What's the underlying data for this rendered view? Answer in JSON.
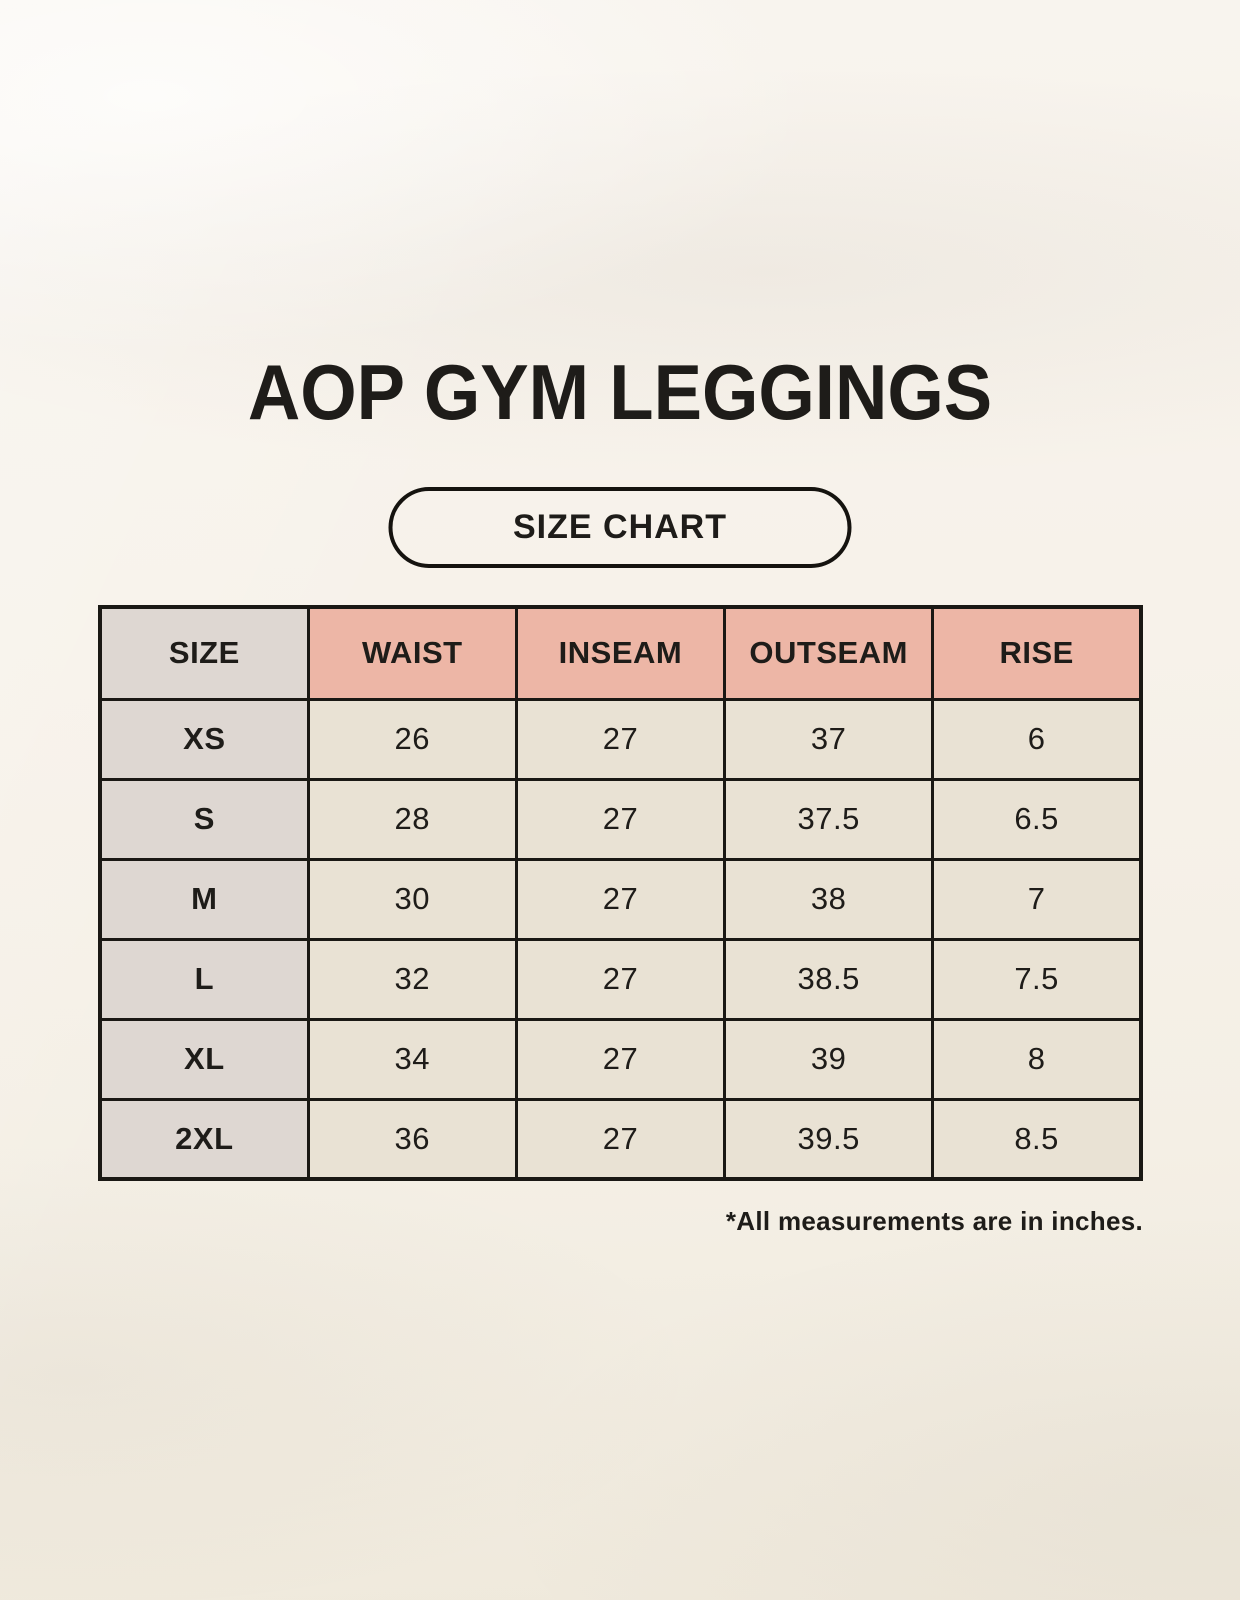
{
  "title": "AOP GYM LEGGINGS",
  "badge_label": "SIZE CHART",
  "footnote": "*All measurements are in inches.",
  "colors": {
    "background": "#f7f2ea",
    "header_accent": "#edb6a6",
    "size_column": "#ded7d2",
    "data_cell": "#e9e2d4",
    "border": "#1a1814",
    "text": "#1e1c19"
  },
  "chart_data": {
    "type": "table",
    "title": "AOP GYM LEGGINGS",
    "subtitle": "SIZE CHART",
    "units": "inches",
    "note": "*All measurements are in inches.",
    "columns": [
      "SIZE",
      "WAIST",
      "INSEAM",
      "OUTSEAM",
      "RISE"
    ],
    "rows": [
      [
        "XS",
        "26",
        "27",
        "37",
        "6"
      ],
      [
        "S",
        "28",
        "27",
        "37.5",
        "6.5"
      ],
      [
        "M",
        "30",
        "27",
        "38",
        "7"
      ],
      [
        "L",
        "32",
        "27",
        "38.5",
        "7.5"
      ],
      [
        "XL",
        "34",
        "27",
        "39",
        "8"
      ],
      [
        "2XL",
        "36",
        "27",
        "39.5",
        "8.5"
      ]
    ]
  }
}
